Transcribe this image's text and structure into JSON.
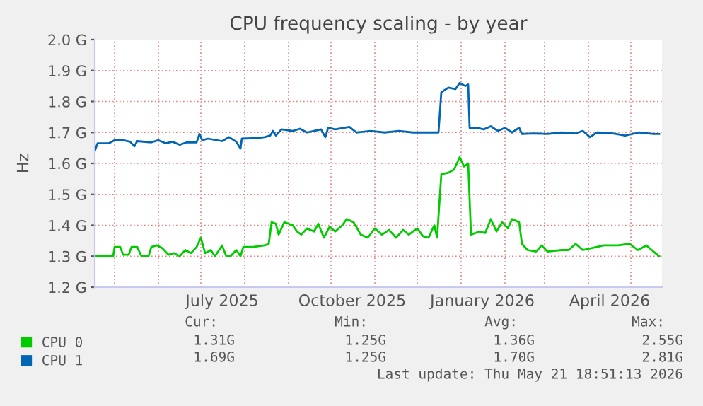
{
  "chart_data": {
    "type": "line",
    "title": "CPU frequency scaling - by year",
    "ylabel": "Hz",
    "xlim": [
      "2025-04-17",
      "2026-05-23"
    ],
    "xticks": [
      {
        "value": "2025-05-01",
        "label": null
      },
      {
        "value": "2025-06-01",
        "label": null
      },
      {
        "value": "2025-07-01",
        "label": null
      },
      {
        "value": "2025-07-16",
        "label": "July 2025"
      },
      {
        "value": "2025-08-01",
        "label": null
      },
      {
        "value": "2025-09-01",
        "label": null
      },
      {
        "value": "2025-10-01",
        "label": null
      },
      {
        "value": "2025-10-16",
        "label": "October 2025"
      },
      {
        "value": "2025-11-01",
        "label": null
      },
      {
        "value": "2025-12-01",
        "label": null
      },
      {
        "value": "2026-01-01",
        "label": null
      },
      {
        "value": "2026-01-16",
        "label": "January 2026"
      },
      {
        "value": "2026-02-01",
        "label": null
      },
      {
        "value": "2026-03-01",
        "label": null
      },
      {
        "value": "2026-04-01",
        "label": null
      },
      {
        "value": "2026-04-16",
        "label": "April 2026"
      },
      {
        "value": "2026-05-01",
        "label": null
      }
    ],
    "ylim": [
      1.2,
      2.0
    ],
    "yticks": [
      {
        "value": 1.2,
        "label": "1.2 G"
      },
      {
        "value": 1.3,
        "label": "1.3 G"
      },
      {
        "value": 1.4,
        "label": "1.4 G"
      },
      {
        "value": 1.5,
        "label": "1.5 G"
      },
      {
        "value": 1.6,
        "label": "1.6 G"
      },
      {
        "value": 1.7,
        "label": "1.7 G"
      },
      {
        "value": 1.8,
        "label": "1.8 G"
      },
      {
        "value": 1.9,
        "label": "1.9 G"
      },
      {
        "value": 2.0,
        "label": "2.0 G"
      }
    ],
    "grid": true,
    "legend": "bottom left",
    "series": [
      {
        "name": "CPU 0",
        "color": "#00cc00",
        "x": [
          "2025-04-17",
          "2025-04-30",
          "2025-05-01",
          "2025-05-05",
          "2025-05-07",
          "2025-05-11",
          "2025-05-13",
          "2025-05-17",
          "2025-05-20",
          "2025-05-25",
          "2025-05-27",
          "2025-05-31",
          "2025-06-04",
          "2025-06-08",
          "2025-06-12",
          "2025-06-16",
          "2025-06-20",
          "2025-06-24",
          "2025-06-28",
          "2025-07-01",
          "2025-07-04",
          "2025-07-08",
          "2025-07-11",
          "2025-07-16",
          "2025-07-19",
          "2025-07-22",
          "2025-07-26",
          "2025-07-29",
          "2025-07-31",
          "2025-08-07",
          "2025-08-15",
          "2025-08-18",
          "2025-08-20",
          "2025-08-23",
          "2025-08-25",
          "2025-08-29",
          "2025-09-04",
          "2025-09-07",
          "2025-09-10",
          "2025-09-14",
          "2025-09-19",
          "2025-09-22",
          "2025-09-26",
          "2025-09-30",
          "2025-10-04",
          "2025-10-09",
          "2025-10-12",
          "2025-10-17",
          "2025-10-22",
          "2025-10-27",
          "2025-11-01",
          "2025-11-06",
          "2025-11-11",
          "2025-11-16",
          "2025-11-21",
          "2025-11-25",
          "2025-12-01",
          "2025-12-05",
          "2025-12-09",
          "2025-12-13",
          "2025-12-15",
          "2025-12-18",
          "2025-12-23",
          "2025-12-27",
          "2025-12-31",
          "2026-01-03",
          "2026-01-06",
          "2026-01-08",
          "2026-01-14",
          "2026-01-18",
          "2026-01-22",
          "2026-01-26",
          "2026-01-30",
          "2026-02-03",
          "2026-02-06",
          "2026-02-11",
          "2026-02-13",
          "2026-02-17",
          "2026-02-23",
          "2026-02-27",
          "2026-03-03",
          "2026-03-13",
          "2026-03-18",
          "2026-03-23",
          "2026-03-28",
          "2026-04-07",
          "2026-04-12",
          "2026-04-22",
          "2026-04-30",
          "2026-05-06",
          "2026-05-12",
          "2026-05-17",
          "2026-05-21"
        ],
        "values": [
          1.3,
          1.3,
          1.33,
          1.33,
          1.305,
          1.305,
          1.33,
          1.33,
          1.3,
          1.3,
          1.33,
          1.335,
          1.325,
          1.305,
          1.31,
          1.3,
          1.32,
          1.31,
          1.33,
          1.36,
          1.31,
          1.32,
          1.3,
          1.335,
          1.3,
          1.3,
          1.32,
          1.3,
          1.33,
          1.33,
          1.335,
          1.34,
          1.41,
          1.405,
          1.37,
          1.41,
          1.4,
          1.38,
          1.37,
          1.39,
          1.38,
          1.405,
          1.36,
          1.395,
          1.38,
          1.4,
          1.42,
          1.41,
          1.37,
          1.36,
          1.39,
          1.37,
          1.385,
          1.36,
          1.385,
          1.37,
          1.39,
          1.365,
          1.36,
          1.4,
          1.36,
          1.565,
          1.57,
          1.58,
          1.62,
          1.59,
          1.6,
          1.37,
          1.38,
          1.375,
          1.42,
          1.38,
          1.41,
          1.39,
          1.42,
          1.41,
          1.34,
          1.32,
          1.315,
          1.335,
          1.315,
          1.32,
          1.32,
          1.34,
          1.32,
          1.33,
          1.335,
          1.335,
          1.34,
          1.32,
          1.335,
          1.315,
          1.3
        ]
      },
      {
        "name": "CPU 1",
        "color": "#0066b3",
        "x": [
          "2025-04-17",
          "2025-04-19",
          "2025-04-27",
          "2025-05-01",
          "2025-05-07",
          "2025-05-12",
          "2025-05-15",
          "2025-05-17",
          "2025-05-27",
          "2025-06-01",
          "2025-06-06",
          "2025-06-11",
          "2025-06-16",
          "2025-06-21",
          "2025-06-28",
          "2025-06-30",
          "2025-07-02",
          "2025-07-06",
          "2025-07-16",
          "2025-07-21",
          "2025-07-26",
          "2025-07-29",
          "2025-07-30",
          "2025-08-10",
          "2025-08-15",
          "2025-08-19",
          "2025-08-21",
          "2025-08-23",
          "2025-08-27",
          "2025-09-04",
          "2025-09-09",
          "2025-09-14",
          "2025-09-19",
          "2025-09-24",
          "2025-09-27",
          "2025-09-29",
          "2025-10-04",
          "2025-10-14",
          "2025-10-19",
          "2025-10-29",
          "2025-11-08",
          "2025-11-18",
          "2025-11-28",
          "2025-12-08",
          "2025-12-16",
          "2025-12-18",
          "2025-12-23",
          "2025-12-28",
          "2025-12-31",
          "2026-01-04",
          "2026-01-06",
          "2026-01-07",
          "2026-01-12",
          "2026-01-17",
          "2026-01-22",
          "2026-01-27",
          "2026-02-01",
          "2026-02-06",
          "2026-02-11",
          "2026-02-13",
          "2026-02-21",
          "2026-03-03",
          "2026-03-13",
          "2026-03-23",
          "2026-03-28",
          "2026-04-02",
          "2026-04-07",
          "2026-04-17",
          "2026-04-27",
          "2026-05-07",
          "2026-05-17",
          "2026-05-21"
        ],
        "values": [
          1.64,
          1.665,
          1.665,
          1.675,
          1.675,
          1.67,
          1.655,
          1.672,
          1.668,
          1.675,
          1.665,
          1.67,
          1.66,
          1.668,
          1.668,
          1.695,
          1.675,
          1.68,
          1.672,
          1.685,
          1.67,
          1.648,
          1.68,
          1.682,
          1.685,
          1.69,
          1.705,
          1.69,
          1.71,
          1.705,
          1.712,
          1.7,
          1.705,
          1.71,
          1.685,
          1.715,
          1.71,
          1.718,
          1.7,
          1.705,
          1.7,
          1.705,
          1.7,
          1.7,
          1.7,
          1.83,
          1.845,
          1.84,
          1.86,
          1.85,
          1.855,
          1.715,
          1.715,
          1.71,
          1.72,
          1.705,
          1.715,
          1.7,
          1.715,
          1.695,
          1.697,
          1.695,
          1.7,
          1.697,
          1.705,
          1.685,
          1.7,
          1.698,
          1.69,
          1.7,
          1.695,
          1.695
        ]
      }
    ],
    "annotations": [
      "Cur:",
      "Min:",
      "Avg:",
      "Max:",
      "1.31G",
      "1.25G",
      "1.36G",
      "2.55G",
      "1.69G",
      "1.25G",
      "1.70G",
      "2.81G",
      "Last update: Thu May 21 18:51:13 2026"
    ]
  }
}
